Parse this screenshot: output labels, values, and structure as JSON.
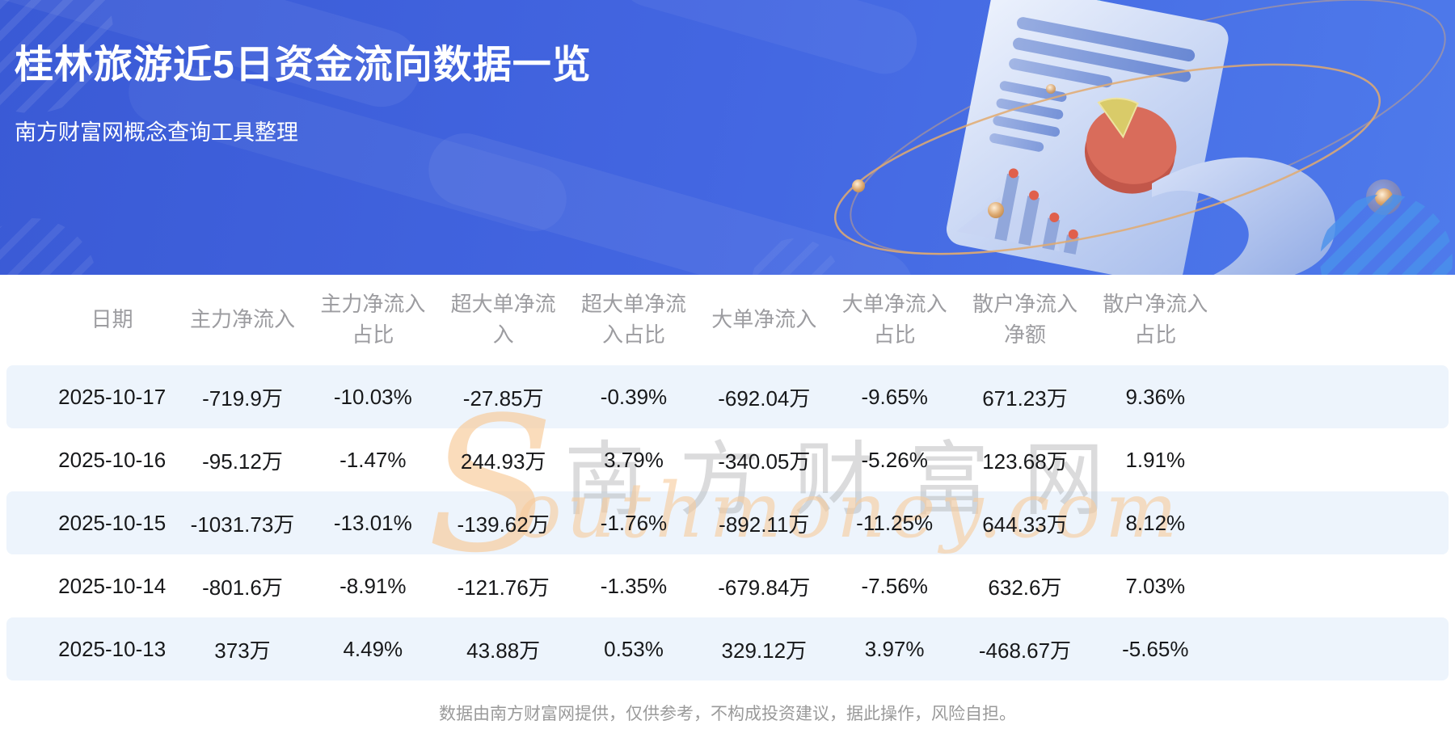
{
  "header": {
    "title": "桂林旅游近5日资金流向数据一览",
    "subtitle": "南方财富网概念查询工具整理",
    "bg_color_start": "#3A5AD5",
    "bg_color_end": "#4E7AEB",
    "text_color": "#FFFFFF"
  },
  "watermark": {
    "initial": "S",
    "en_rest": "outhmoney.com",
    "cn": "南方财富网",
    "en_color": "#F7C996",
    "cn_color": "#AAAAAC"
  },
  "chart_data": {
    "type": "table",
    "title": "桂林旅游近5日资金流向数据一览",
    "columns": [
      "日期",
      "主力净流入",
      "主力净流入占比",
      "超大单净流入",
      "超大单净流入占比",
      "大单净流入",
      "大单净流入占比",
      "散户净流入净额",
      "散户净流入占比"
    ],
    "rows": [
      [
        "2025-10-17",
        "-719.9万",
        "-10.03%",
        "-27.85万",
        "-0.39%",
        "-692.04万",
        "-9.65%",
        "671.23万",
        "9.36%"
      ],
      [
        "2025-10-16",
        "-95.12万",
        "-1.47%",
        "244.93万",
        "3.79%",
        "-340.05万",
        "-5.26%",
        "123.68万",
        "1.91%"
      ],
      [
        "2025-10-15",
        "-1031.73万",
        "-13.01%",
        "-139.62万",
        "-1.76%",
        "-892.11万",
        "-11.25%",
        "644.33万",
        "8.12%"
      ],
      [
        "2025-10-14",
        "-801.6万",
        "-8.91%",
        "-121.76万",
        "-1.35%",
        "-679.84万",
        "-7.56%",
        "632.6万",
        "7.03%"
      ],
      [
        "2025-10-13",
        "373万",
        "4.49%",
        "43.88万",
        "0.53%",
        "329.12万",
        "3.97%",
        "-468.67万",
        "-5.65%"
      ]
    ],
    "row_stripe_color": "#EDF4FC",
    "header_text_color": "#9C9CA0",
    "body_text_color": "#17181A",
    "striped_rows": [
      0,
      2,
      4
    ]
  },
  "footer": {
    "disclaimer": "数据由南方财富网提供，仅供参考，不构成投资建议，据此操作，风险自担。"
  }
}
